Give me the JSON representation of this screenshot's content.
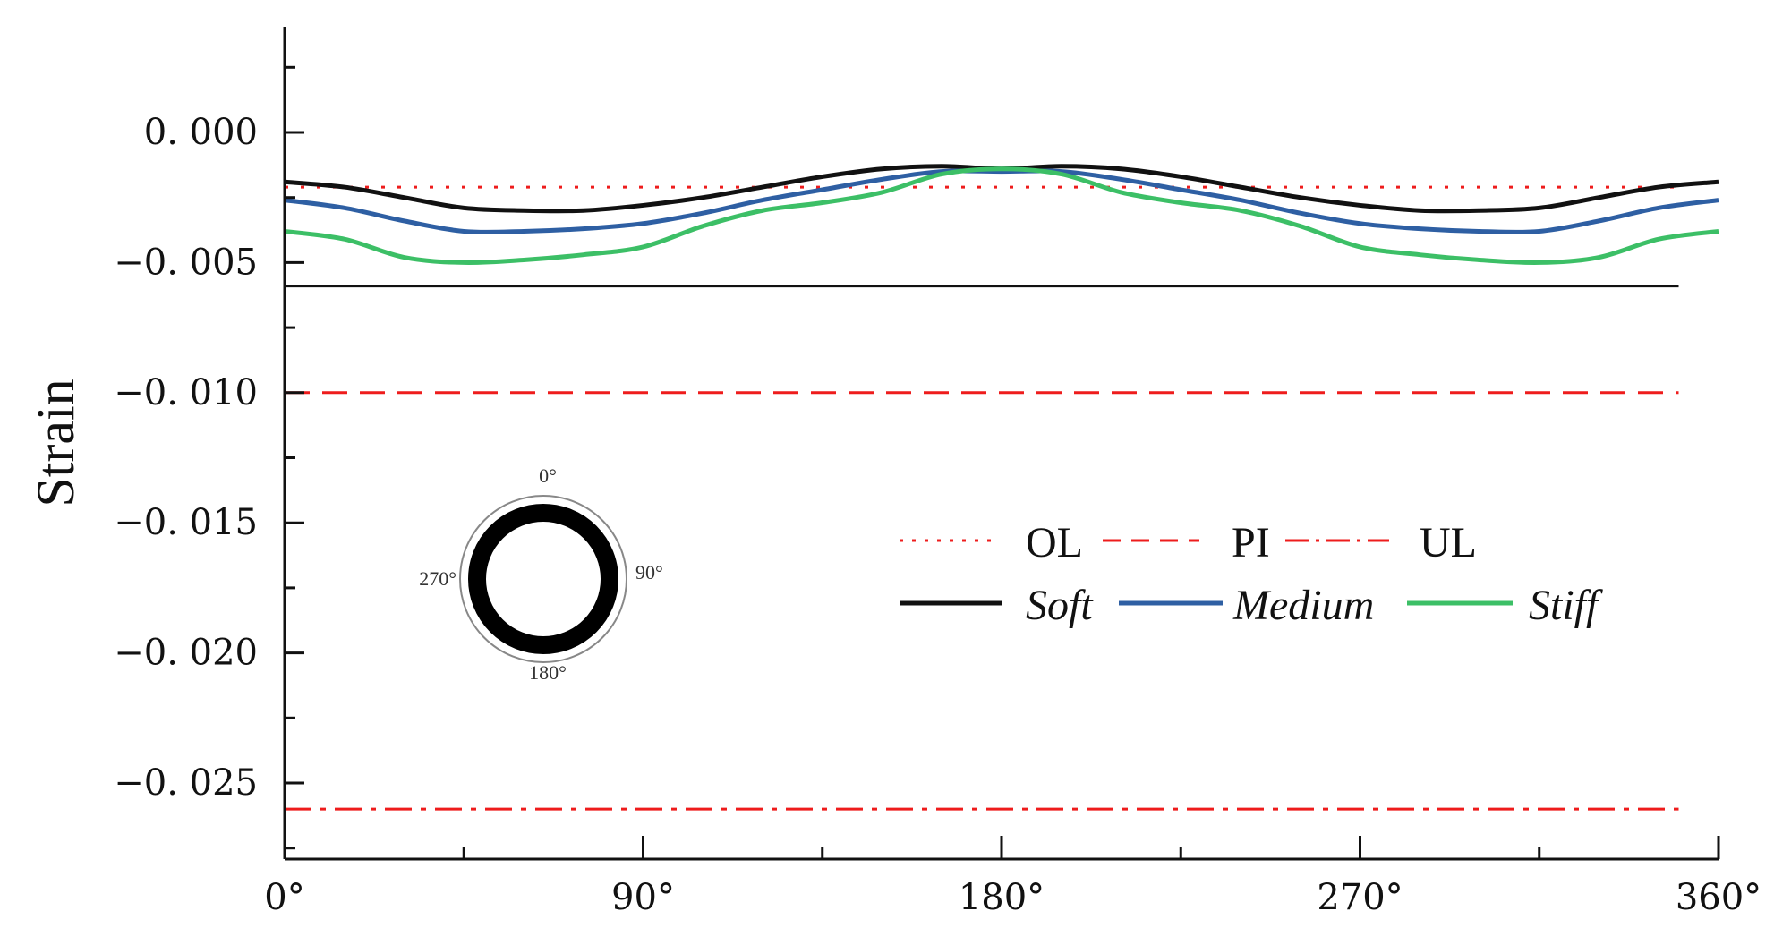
{
  "chart_data": {
    "type": "line",
    "title": "",
    "xlabel": "",
    "ylabel": "Strain",
    "xlim": [
      0,
      360
    ],
    "ylim": [
      -0.028,
      0.004
    ],
    "x_ticks": [
      0,
      90,
      180,
      270,
      360
    ],
    "x_tick_labels": [
      "0°",
      "90°",
      "180°",
      "270°",
      "360°"
    ],
    "x_minor_ticks": [
      45,
      135,
      225,
      315
    ],
    "y_ticks": [
      0.0,
      -0.005,
      -0.01,
      -0.015,
      -0.02,
      -0.025
    ],
    "y_tick_labels": [
      "0. 000",
      "−0. 005",
      "−0. 010",
      "−0. 015",
      "−0. 020",
      "−0. 025"
    ],
    "y_minor_ticks": [
      0.0025,
      -0.0025,
      -0.0075,
      -0.0125,
      -0.0175,
      -0.0225,
      -0.0275
    ],
    "series": [
      {
        "name": "Soft",
        "color": "#111111",
        "x": [
          0,
          15,
          30,
          45,
          60,
          75,
          90,
          105,
          120,
          135,
          150,
          165,
          180,
          195,
          210,
          225,
          240,
          255,
          270,
          285,
          300,
          315,
          330,
          345,
          360
        ],
        "values": [
          -0.0019,
          -0.0021,
          -0.0025,
          -0.0029,
          -0.003,
          -0.003,
          -0.0028,
          -0.0025,
          -0.0021,
          -0.0017,
          -0.0014,
          -0.0013,
          -0.0014,
          -0.0013,
          -0.0014,
          -0.0017,
          -0.0021,
          -0.0025,
          -0.0028,
          -0.003,
          -0.003,
          -0.0029,
          -0.0025,
          -0.0021,
          -0.0019
        ]
      },
      {
        "name": "Medium",
        "color": "#2e5fa3",
        "x": [
          0,
          15,
          30,
          45,
          60,
          75,
          90,
          105,
          120,
          135,
          150,
          165,
          180,
          195,
          210,
          225,
          240,
          255,
          270,
          285,
          300,
          315,
          330,
          345,
          360
        ],
        "values": [
          -0.0026,
          -0.0029,
          -0.0034,
          -0.0038,
          -0.0038,
          -0.0037,
          -0.0035,
          -0.0031,
          -0.0026,
          -0.0022,
          -0.0018,
          -0.0015,
          -0.0015,
          -0.0015,
          -0.0018,
          -0.0022,
          -0.0026,
          -0.0031,
          -0.0035,
          -0.0037,
          -0.0038,
          -0.0038,
          -0.0034,
          -0.0029,
          -0.0026
        ]
      },
      {
        "name": "Stiff",
        "color": "#3cbf66",
        "x": [
          0,
          15,
          30,
          45,
          60,
          75,
          90,
          105,
          120,
          135,
          150,
          165,
          180,
          195,
          210,
          225,
          240,
          255,
          270,
          285,
          300,
          315,
          330,
          345,
          360
        ],
        "values": [
          -0.0038,
          -0.0041,
          -0.0048,
          -0.005,
          -0.0049,
          -0.0047,
          -0.0044,
          -0.0036,
          -0.003,
          -0.0027,
          -0.0023,
          -0.0016,
          -0.0014,
          -0.0016,
          -0.0023,
          -0.0027,
          -0.003,
          -0.0036,
          -0.0044,
          -0.0047,
          -0.0049,
          -0.005,
          -0.0048,
          -0.0041,
          -0.0038
        ]
      }
    ],
    "reference_lines": [
      {
        "name": "OL",
        "value": -0.0021,
        "color": "#ee1c1c",
        "style": "dotted"
      },
      {
        "name": "PI",
        "value": -0.01,
        "color": "#ee1c1c",
        "style": "dashed"
      },
      {
        "name": "UL",
        "value": -0.026,
        "color": "#ee1c1c",
        "style": "dash-dot"
      }
    ],
    "extra_lines": [
      {
        "name": "baseline",
        "value": -0.0059,
        "x_end": 350,
        "color": "#111111",
        "style": "solid"
      }
    ],
    "legend": {
      "placement": "center-right",
      "rows": [
        [
          "OL",
          "PI",
          "UL"
        ],
        [
          "Soft",
          "Medium",
          "Stiff"
        ]
      ]
    },
    "inset": {
      "description": "pipe cross-section",
      "labels": [
        "0°",
        "90°",
        "180°",
        "270°"
      ]
    }
  }
}
